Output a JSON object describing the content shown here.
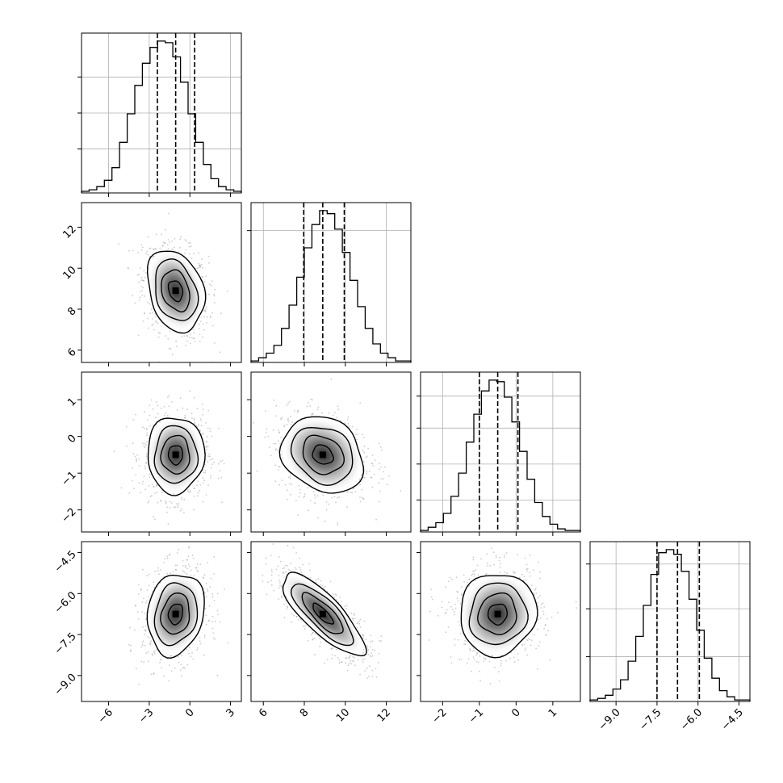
{
  "chart_data": {
    "type": "corner",
    "grid": true,
    "colors": {
      "contour": "#000000",
      "scatter": "#9a9a9a",
      "grid": "#b0b0b0",
      "background": "#ffffff"
    },
    "params": [
      {
        "range": [
          -8.0,
          3.8
        ],
        "ticks": [
          -6,
          -3,
          0,
          3
        ],
        "tick_labels": [
          "−6",
          "−3",
          "0",
          "3"
        ],
        "quantiles": [
          -2.4,
          -1.05,
          0.35
        ],
        "mean": -1.05,
        "sd": 1.05
      },
      {
        "range": [
          5.4,
          13.2
        ],
        "ticks": [
          6,
          8,
          10,
          12
        ],
        "tick_labels": [
          "6",
          "8",
          "10",
          "12"
        ],
        "quantiles": [
          7.97,
          8.9,
          9.95
        ],
        "mean": 8.9,
        "sd": 1.0
      },
      {
        "range": [
          -2.6,
          1.75
        ],
        "ticks": [
          -2,
          -1,
          0,
          1
        ],
        "tick_labels": [
          "−2",
          "−1",
          "0",
          "1"
        ],
        "quantiles": [
          -1.0,
          -0.5,
          0.05
        ],
        "mean": -0.5,
        "sd": 0.52
      },
      {
        "range": [
          -9.95,
          -4.1
        ],
        "ticks": [
          -9.0,
          -7.5,
          -6.0,
          -4.5
        ],
        "tick_labels": [
          "−9.0",
          "−7.5",
          "−6.0",
          "−4.5"
        ],
        "quantiles": [
          -7.5,
          -6.75,
          -5.95
        ],
        "mean": -6.75,
        "sd": 0.75
      }
    ],
    "correlations": [
      [
        1,
        -0.25,
        0,
        0.15
      ],
      [
        -0.25,
        1,
        -0.2,
        -0.8
      ],
      [
        0,
        -0.2,
        1,
        0.05
      ],
      [
        0.15,
        -0.8,
        0.05,
        1
      ]
    ],
    "histograms": [
      {
        "bins": 21,
        "counts": [
          1,
          2,
          4,
          8,
          16,
          32,
          50,
          68,
          82,
          92,
          96,
          95,
          86,
          70,
          50,
          32,
          18,
          9,
          4,
          2,
          1
        ]
      },
      {
        "bins": 21,
        "counts": [
          1,
          3,
          6,
          11,
          22,
          37,
          55,
          74,
          89,
          98,
          96,
          86,
          71,
          53,
          36,
          22,
          12,
          6,
          3,
          1,
          1
        ]
      },
      {
        "bins": 21,
        "counts": [
          1,
          3,
          6,
          12,
          23,
          38,
          58,
          76,
          91,
          98,
          97,
          87,
          71,
          52,
          34,
          19,
          10,
          5,
          2,
          1,
          1
        ]
      },
      {
        "bins": 21,
        "counts": [
          1,
          2,
          4,
          8,
          14,
          26,
          42,
          62,
          82,
          96,
          98,
          95,
          84,
          66,
          46,
          28,
          15,
          7,
          3,
          1,
          1
        ]
      }
    ],
    "hist_yticks": [
      [
        0.275,
        0.5,
        0.725
      ],
      [
        0.825
      ],
      [
        0.2,
        0.425,
        0.65,
        0.85
      ],
      [
        0.28,
        0.58,
        0.86
      ]
    ],
    "contour_levels": [
      0.5,
      1.0,
      1.5,
      2.0
    ]
  }
}
